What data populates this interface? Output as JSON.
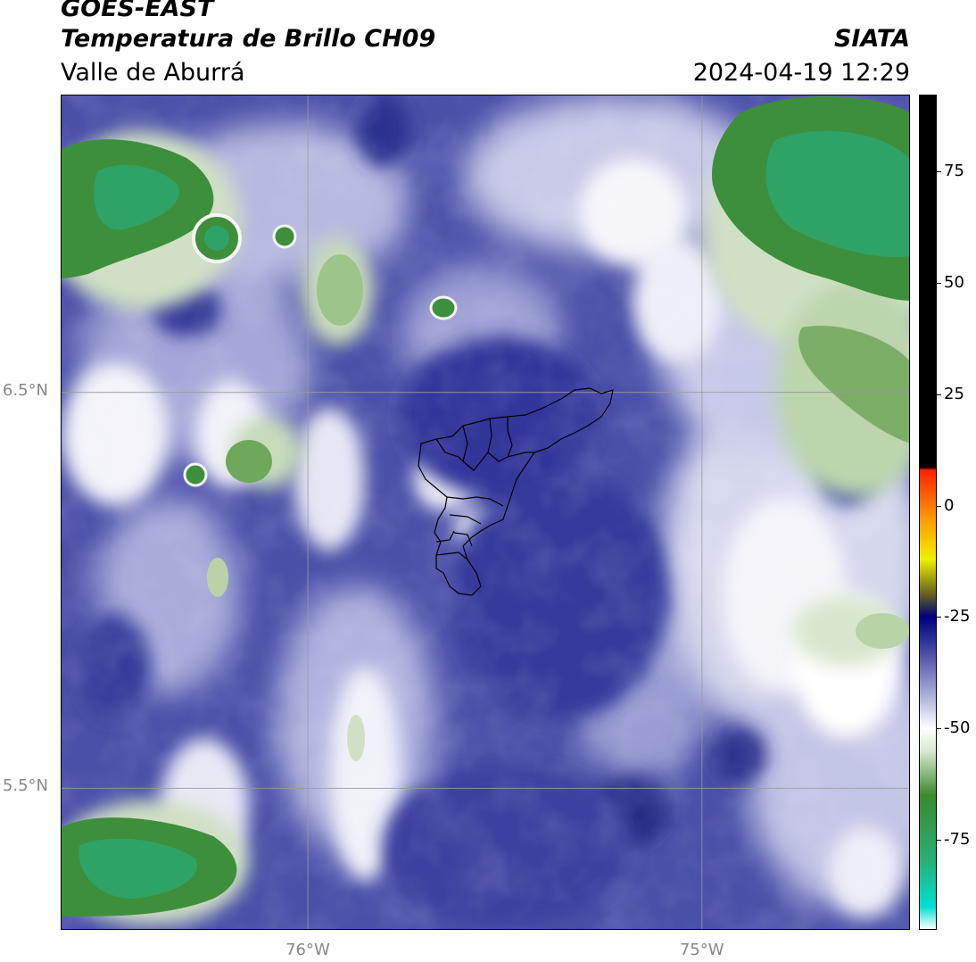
{
  "header": {
    "satellite": "GOES-EAST",
    "product": "Temperatura de Brillo CH09",
    "region": "Valle de Aburrá",
    "organization": "SIATA",
    "datetime": "2024-04-19 12:29"
  },
  "map": {
    "lat_labels": [
      {
        "value": 6.5,
        "label": "6.5°N"
      },
      {
        "value": 5.5,
        "label": "5.5°N"
      }
    ],
    "lon_labels": [
      {
        "value": -76,
        "label": "76°W"
      },
      {
        "value": -75,
        "label": "75°W"
      }
    ],
    "extent": {
      "lon_min": -76.625,
      "lon_max": -74.47,
      "lat_min": 5.14,
      "lat_max": 7.25
    },
    "colors": {
      "deep_blue": "#2b2f8f",
      "mid_blue": "#4a4fa8",
      "light_blue": "#9fa3d4",
      "white": "#f4f4fa",
      "light_green": "#b9d3a6",
      "green": "#3f8f3a",
      "teal_green": "#2ba36a",
      "gridline": "#9a9a9a"
    }
  },
  "colorbar": {
    "vmin": -95,
    "vmax": 92,
    "ticks": [
      {
        "value": 75,
        "label": "75"
      },
      {
        "value": 50,
        "label": "50"
      },
      {
        "value": 25,
        "label": "25"
      },
      {
        "value": 0,
        "label": "0"
      },
      {
        "value": -25,
        "label": "-25"
      },
      {
        "value": -50,
        "label": "-50"
      },
      {
        "value": -75,
        "label": "-75"
      }
    ],
    "stops": [
      {
        "value": -95,
        "color": "#ffffff"
      },
      {
        "value": -90,
        "color": "#00e0d0"
      },
      {
        "value": -80,
        "color": "#28b07a"
      },
      {
        "value": -65,
        "color": "#3a8a2c"
      },
      {
        "value": -55,
        "color": "#dbe8d2"
      },
      {
        "value": -50,
        "color": "#ffffff"
      },
      {
        "value": -42,
        "color": "#a6a9d6"
      },
      {
        "value": -30,
        "color": "#2c2f95"
      },
      {
        "value": -25,
        "color": "#000080"
      },
      {
        "value": -20,
        "color": "#606020"
      },
      {
        "value": -12,
        "color": "#f0f000"
      },
      {
        "value": -2,
        "color": "#ff9000"
      },
      {
        "value": 8,
        "color": "#ff2000"
      },
      {
        "value": 8.5,
        "color": "#000000"
      },
      {
        "value": 92,
        "color": "#000000"
      }
    ]
  }
}
